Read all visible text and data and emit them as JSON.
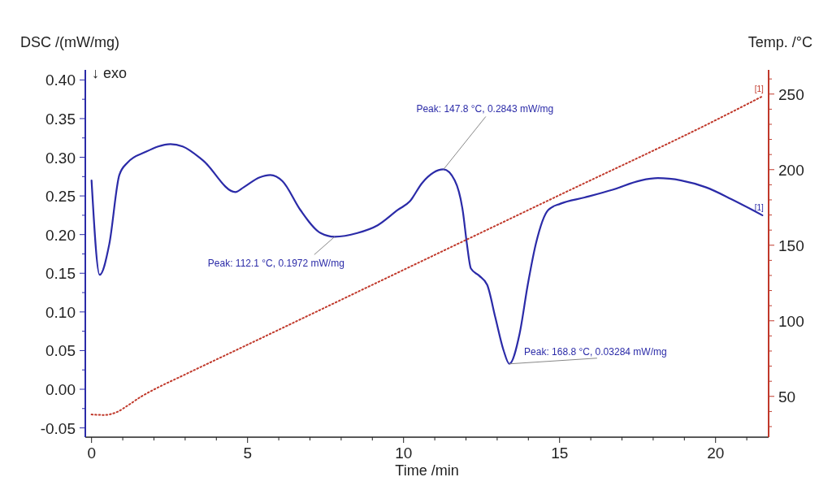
{
  "chart_data": {
    "type": "line",
    "xlabel": "Time /min",
    "ylabel": "DSC /(mW/mg)",
    "y2label": "Temp. /°C",
    "xlim": [
      -0.2,
      21.7
    ],
    "ylim": [
      -0.062,
      0.413
    ],
    "y2lim": [
      23,
      266
    ],
    "xticks": [
      0,
      {
        "value": 1,
        "label": null
      },
      {
        "value": 2,
        "label": null
      },
      {
        "value": 3,
        "label": null
      },
      {
        "value": 4,
        "label": null
      },
      5,
      {
        "value": 6,
        "label": null
      },
      {
        "value": 7,
        "label": null
      },
      {
        "value": 8,
        "label": null
      },
      {
        "value": 9,
        "label": null
      },
      10,
      {
        "value": 11,
        "label": null
      },
      {
        "value": 12,
        "label": null
      },
      {
        "value": 13,
        "label": null
      },
      {
        "value": 14,
        "label": null
      },
      15,
      {
        "value": 16,
        "label": null
      },
      {
        "value": 17,
        "label": null
      },
      {
        "value": 18,
        "label": null
      },
      {
        "value": 19,
        "label": null
      },
      20,
      {
        "value": 21,
        "label": null
      }
    ],
    "yticks": [
      {
        "value": -0.05,
        "label": "-0.05"
      },
      {
        "value": -0.025,
        "label": null
      },
      {
        "value": 0,
        "label": "0.00"
      },
      {
        "value": 0.025,
        "label": null
      },
      {
        "value": 0.05,
        "label": "0.05"
      },
      {
        "value": 0.075,
        "label": null
      },
      {
        "value": 0.1,
        "label": "0.10"
      },
      {
        "value": 0.125,
        "label": null
      },
      {
        "value": 0.15,
        "label": "0.15"
      },
      {
        "value": 0.175,
        "label": null
      },
      {
        "value": 0.2,
        "label": "0.20"
      },
      {
        "value": 0.225,
        "label": null
      },
      {
        "value": 0.25,
        "label": "0.25"
      },
      {
        "value": 0.275,
        "label": null
      },
      {
        "value": 0.3,
        "label": "0.30"
      },
      {
        "value": 0.325,
        "label": null
      },
      {
        "value": 0.35,
        "label": "0.35"
      },
      {
        "value": 0.375,
        "label": null
      },
      {
        "value": 0.4,
        "label": "0.40"
      }
    ],
    "y2ticks": [
      {
        "value": 30,
        "label": null
      },
      {
        "value": 40,
        "label": null
      },
      50,
      {
        "value": 60,
        "label": null
      },
      {
        "value": 70,
        "label": null
      },
      {
        "value": 80,
        "label": null
      },
      {
        "value": 90,
        "label": null
      },
      100,
      {
        "value": 110,
        "label": null
      },
      {
        "value": 120,
        "label": null
      },
      {
        "value": 130,
        "label": null
      },
      {
        "value": 140,
        "label": null
      },
      150,
      {
        "value": 160,
        "label": null
      },
      {
        "value": 170,
        "label": null
      },
      {
        "value": 180,
        "label": null
      },
      {
        "value": 190,
        "label": null
      },
      200,
      {
        "value": 210,
        "label": null
      },
      {
        "value": 220,
        "label": null
      },
      {
        "value": 230,
        "label": null
      },
      {
        "value": 240,
        "label": null
      },
      250,
      {
        "value": 260,
        "label": null
      }
    ],
    "grid": false,
    "marker": "none",
    "series": [
      {
        "name": "[1]",
        "color": "#2b2ba8",
        "line_style": "solid",
        "x": [
          0,
          0.26,
          0.57,
          0.89,
          1.15,
          1.74,
          2.53,
          2.92,
          3.57,
          4.61,
          4.87,
          5.39,
          5.73,
          6.12,
          6.69,
          7.34,
          7.79,
          8.52,
          9.17,
          9.82,
          10.2,
          10.6,
          11.28,
          11.64,
          11.9,
          12.03,
          12.16,
          12.42,
          12.68,
          12.94,
          13.2,
          13.39,
          13.72,
          13.98,
          14.24,
          14.64,
          15.03,
          15.8,
          16.7,
          17.6,
          18.15,
          18.9,
          19.7,
          20.5,
          21.5
        ],
        "values": [
          0.27,
          0.148,
          0.188,
          0.277,
          0.293,
          0.307,
          0.317,
          0.314,
          0.296,
          0.255,
          0.261,
          0.274,
          0.277,
          0.269,
          0.232,
          0.202,
          0.1972,
          0.202,
          0.212,
          0.232,
          0.243,
          0.267,
          0.2843,
          0.27,
          0.23,
          0.188,
          0.156,
          0.147,
          0.135,
          0.093,
          0.051,
          0.03284,
          0.072,
          0.135,
          0.188,
          0.232,
          0.24,
          0.248,
          0.258,
          0.27,
          0.273,
          0.27,
          0.261,
          0.246,
          0.225
        ]
      },
      {
        "name": "[1]",
        "color": "#c0392b",
        "line_style": "dotted",
        "axis": "y2",
        "x": [
          0,
          0.4,
          0.8,
          1.2,
          1.6,
          2.0,
          3,
          5,
          10,
          15,
          20,
          21.5
        ],
        "values": [
          38,
          37.7,
          39.5,
          44.5,
          50,
          54.5,
          64.5,
          84.2,
          133.7,
          183.2,
          232.7,
          248.5
        ]
      }
    ],
    "annotations": [
      "↓ exo",
      {
        "text": "Peak: 112.1 °C, 0.1972 mW/mg",
        "x": 7.79,
        "y": 0.1972
      },
      {
        "text": "Peak: 147.8 °C, 0.2843 mW/mg",
        "x": 11.28,
        "y": 0.2843
      },
      {
        "text": "Peak: 168.8 °C, 0.03284 mW/mg",
        "x": 13.39,
        "y": 0.03284
      }
    ]
  }
}
